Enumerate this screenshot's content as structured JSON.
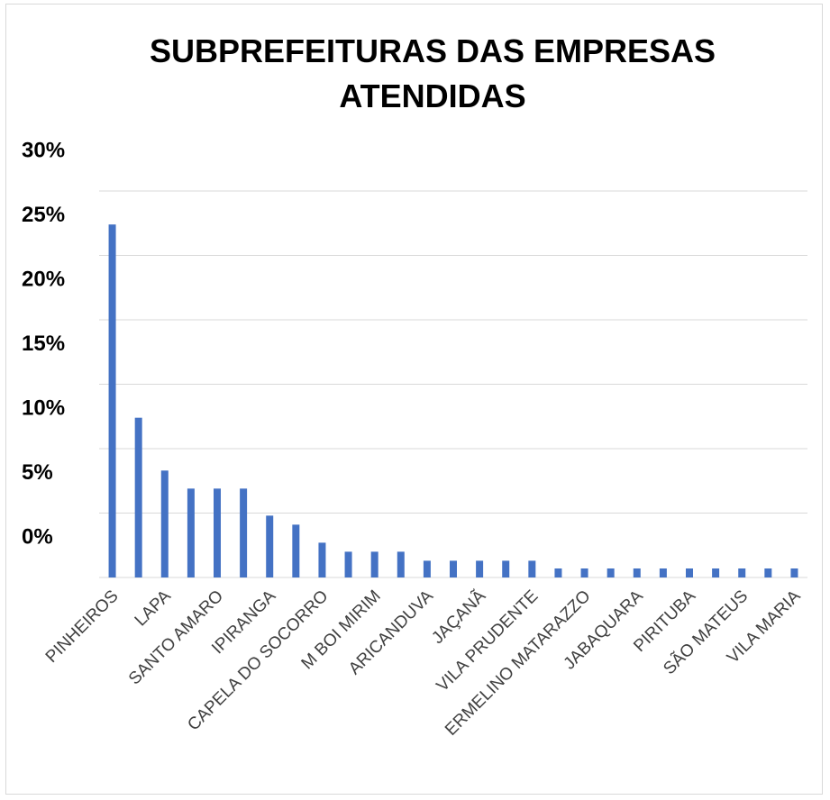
{
  "chart_data": {
    "type": "bar",
    "title": "SUBPREFEITURAS DAS EMPRESAS ATENDIDAS",
    "categories": [
      "PINHEIROS",
      null,
      "LAPA",
      null,
      "SANTO AMARO",
      null,
      "IPIRANGA",
      null,
      "CAPELA DO SOCORRO",
      null,
      "M BOI MIRIM",
      null,
      "ARICANDUVA",
      null,
      "JAÇANÃ",
      null,
      "VILA PRUDENTE",
      null,
      "ERMELINO MATARAZZO",
      null,
      "JABAQUARA",
      null,
      "PIRITUBA",
      null,
      "SÃO MATEUS",
      null,
      "VILA MARIA"
    ],
    "values": [
      27.4,
      12.4,
      8.3,
      6.9,
      6.9,
      6.9,
      4.8,
      4.1,
      2.7,
      2.0,
      2.0,
      2.0,
      1.3,
      1.3,
      1.3,
      1.3,
      1.3,
      0.7,
      0.7,
      0.7,
      0.7,
      0.7,
      0.7,
      0.7,
      0.7,
      0.7,
      0.7
    ],
    "color": "#4472c4",
    "ylim": [
      0,
      30
    ],
    "yticks": [
      {
        "value": 0,
        "label": "0%"
      },
      {
        "value": 5,
        "label": "5%"
      },
      {
        "value": 10,
        "label": "10%"
      },
      {
        "value": 15,
        "label": "15%"
      },
      {
        "value": 20,
        "label": "20%"
      },
      {
        "value": 25,
        "label": "25%"
      },
      {
        "value": 30,
        "label": "30%"
      }
    ],
    "grid": true
  }
}
